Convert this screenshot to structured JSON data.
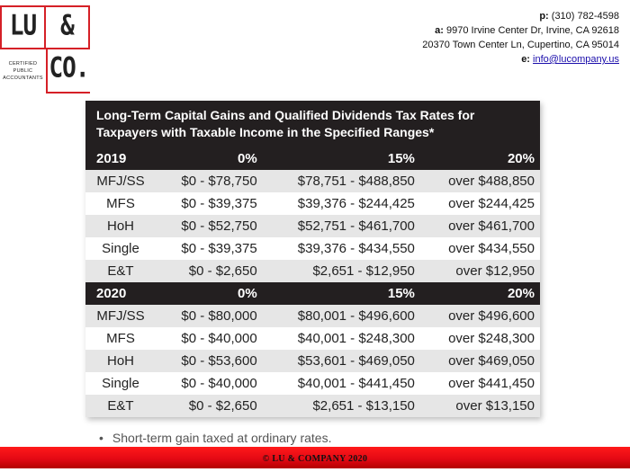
{
  "logo": {
    "top_left": "LU",
    "top_right": "&",
    "bottom_right": "CO.",
    "caption_lines": [
      "CERTIFIED",
      "PUBLIC",
      "ACCOUNTANTS"
    ]
  },
  "contact": {
    "phone_label": "p:",
    "phone": " (310) 782-4598",
    "address_label": "a:",
    "address1": " 9970 Irvine Center Dr, Irvine, CA 92618",
    "address2": "20370 Town Center Ln, Cupertino, CA 95014",
    "email_label": "e:",
    "email": "info@lucompany.us"
  },
  "table": {
    "title_line1": "Long-Term Capital Gains and Qualified Dividends Tax Rates for",
    "title_line2": "Taxpayers with Taxable Income in the Specified Ranges*",
    "sections": [
      {
        "year": "2019",
        "rates": [
          "0%",
          "15%",
          "20%"
        ],
        "rows": [
          {
            "status": "MFJ/SS",
            "r0": "$0 - $78,750",
            "r15": "$78,751 - $488,850",
            "r20": "over $488,850"
          },
          {
            "status": "MFS",
            "r0": "$0 - $39,375",
            "r15": "$39,376 - $244,425",
            "r20": "over $244,425"
          },
          {
            "status": "HoH",
            "r0": "$0 - $52,750",
            "r15": "$52,751 - $461,700",
            "r20": "over $461,700"
          },
          {
            "status": "Single",
            "r0": "$0 - $39,375",
            "r15": "$39,376 - $434,550",
            "r20": "over $434,550"
          },
          {
            "status": "E&T",
            "r0": "$0 - $2,650",
            "r15": "$2,651 - $12,950",
            "r20": "over $12,950"
          }
        ]
      },
      {
        "year": "2020",
        "rates": [
          "0%",
          "15%",
          "20%"
        ],
        "rows": [
          {
            "status": "MFJ/SS",
            "r0": "$0 - $80,000",
            "r15": "$80,001 - $496,600",
            "r20": "over $496,600"
          },
          {
            "status": "MFS",
            "r0": "$0 - $40,000",
            "r15": "$40,001 - $248,300",
            "r20": "over $248,300"
          },
          {
            "status": "HoH",
            "r0": "$0 - $53,600",
            "r15": "$53,601 - $469,050",
            "r20": "over $469,050"
          },
          {
            "status": "Single",
            "r0": "$0 - $40,000",
            "r15": "$40,001 - $441,450",
            "r20": "over $441,450"
          },
          {
            "status": "E&T",
            "r0": "$0 - $2,650",
            "r15": "$2,651 - $13,150",
            "r20": "over $13,150"
          }
        ]
      }
    ]
  },
  "note": {
    "bullet": "•",
    "text": "Short-term gain taxed at ordinary rates."
  },
  "footer": {
    "text": "© LU & COMPANY 2020"
  },
  "colors": {
    "brand_red": "#d52027",
    "header_dark": "#231f20",
    "row_alt": "#e6e6e6"
  }
}
